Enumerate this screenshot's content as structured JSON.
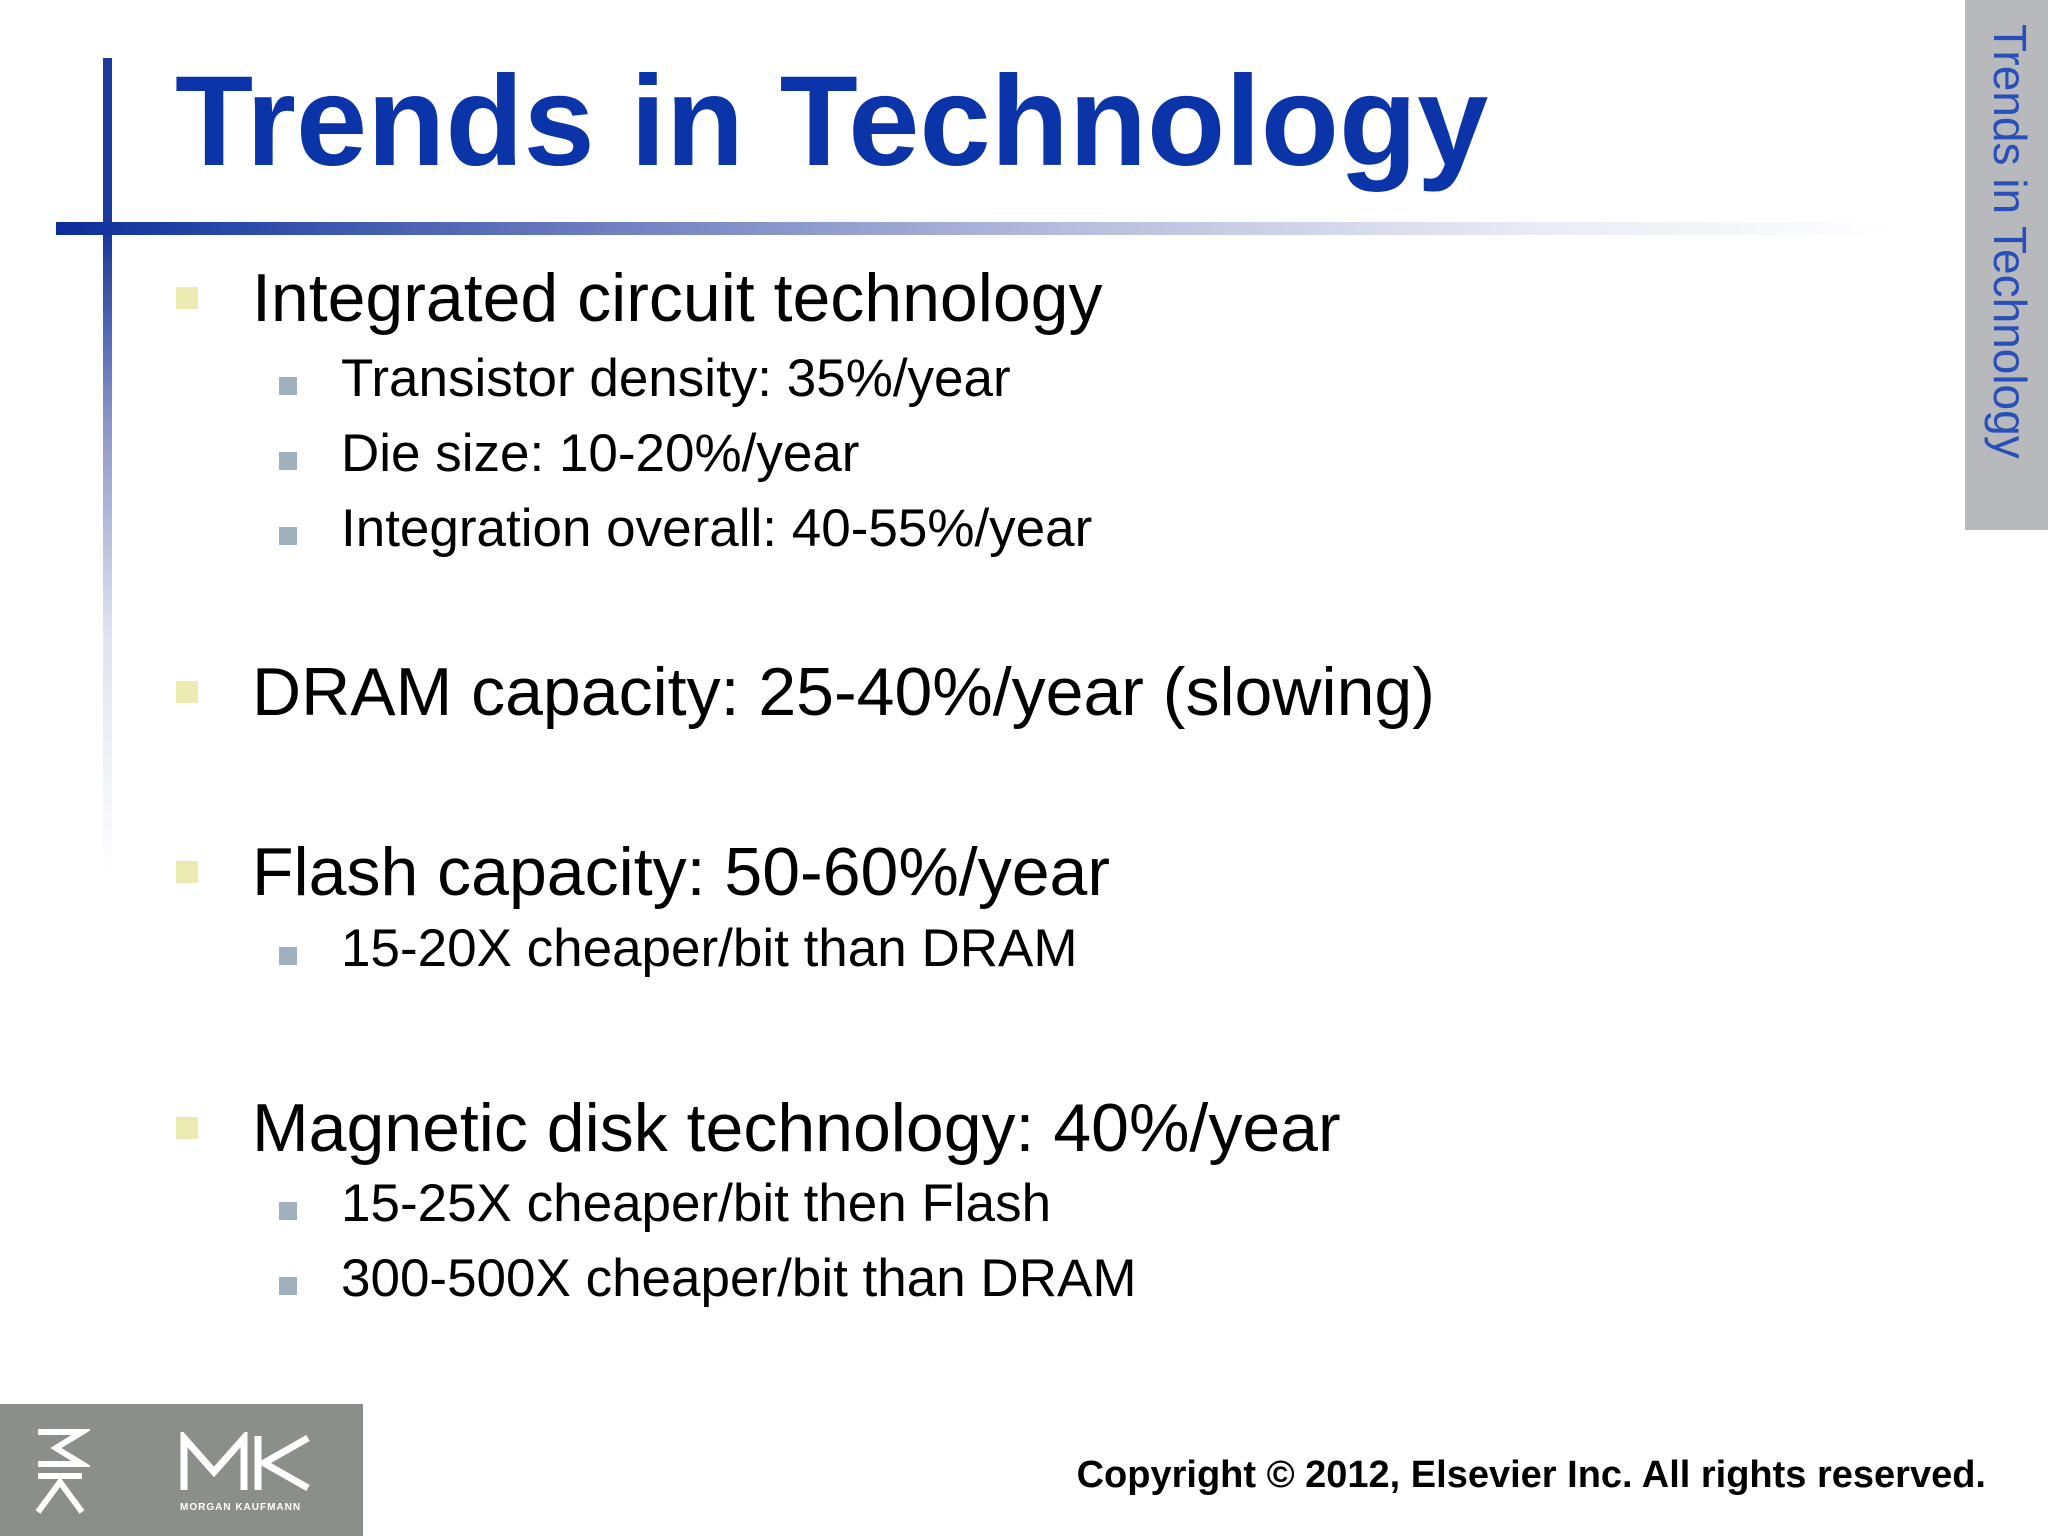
{
  "slide": {
    "title": "Trends in Technology",
    "side_tab": "Trends in Technology",
    "copyright": "Copyright © 2012, Elsevier Inc. All rights reserved.",
    "logo": {
      "mark": "MK",
      "subtitle": "MORGAN KAUFMANN"
    },
    "items": [
      {
        "text": "Integrated circuit technology",
        "subitems": [
          "Transistor density:  35%/year",
          "Die size:  10-20%/year",
          "Integration overall:  40-55%/year"
        ]
      },
      {
        "text": "DRAM capacity:  25-40%/year (slowing)",
        "subitems": []
      },
      {
        "text": "Flash capacity:  50-60%/year",
        "subitems": [
          "15-20X cheaper/bit than DRAM"
        ]
      },
      {
        "text": "Magnetic disk technology:  40%/year",
        "subitems": [
          "15-25X cheaper/bit then Flash",
          "300-500X cheaper/bit than DRAM"
        ]
      }
    ],
    "colors": {
      "title": "#0a34a8",
      "accent_line": "#1a3a9c",
      "bullet_level1": "#ebebb2",
      "bullet_level2": "#9fb0bf",
      "side_tab_bg": "#b8b9bc",
      "logo_bg": "#8c8e8a"
    }
  }
}
